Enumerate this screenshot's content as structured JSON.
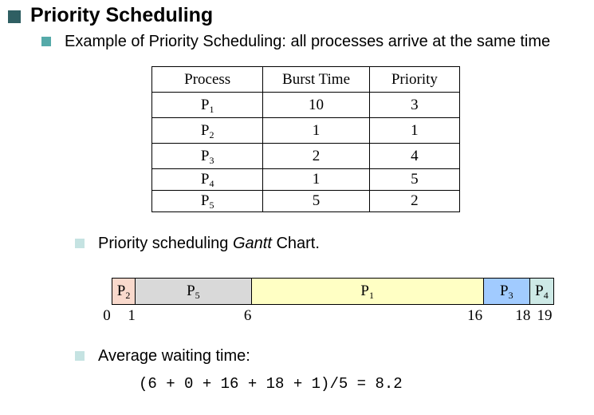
{
  "title": "Priority Scheduling",
  "subtitle": "Example of Priority Scheduling: all processes arrive at the same time",
  "table": {
    "headers": [
      "Process",
      "Burst Time",
      "Priority"
    ],
    "rows": [
      {
        "process": "P",
        "sub": "1",
        "burst": "10",
        "priority": "3"
      },
      {
        "process": "P",
        "sub": "2",
        "burst": "1",
        "priority": "1"
      },
      {
        "process": "P",
        "sub": "3",
        "burst": "2",
        "priority": "4"
      },
      {
        "process": "P",
        "sub": "4",
        "burst": "1",
        "priority": "5"
      },
      {
        "process": "P",
        "sub": "5",
        "burst": "5",
        "priority": "2"
      }
    ]
  },
  "gantt": {
    "label_prefix": "Priority scheduling ",
    "label_em": "Gantt",
    "label_suffix": " Chart.",
    "segments": [
      {
        "process": "P",
        "sub": "2",
        "start": 0,
        "end": 1,
        "color": "#f9d9cc"
      },
      {
        "process": "P",
        "sub": "5",
        "start": 1,
        "end": 6,
        "color": "#d9d9d9"
      },
      {
        "process": "P",
        "sub": "1",
        "start": 6,
        "end": 16,
        "color": "#ffffc4"
      },
      {
        "process": "P",
        "sub": "3",
        "start": 16,
        "end": 18,
        "color": "#a1cbff"
      },
      {
        "process": "P",
        "sub": "4",
        "start": 18,
        "end": 19,
        "color": "#cde9e6"
      }
    ],
    "ticks": [
      "0",
      "1",
      "6",
      "16",
      "18",
      "19"
    ],
    "total": 19
  },
  "average": {
    "label": "Average waiting time:",
    "formula": "(6 + 0 + 16 + 18 + 1)/5 = 8.2"
  }
}
